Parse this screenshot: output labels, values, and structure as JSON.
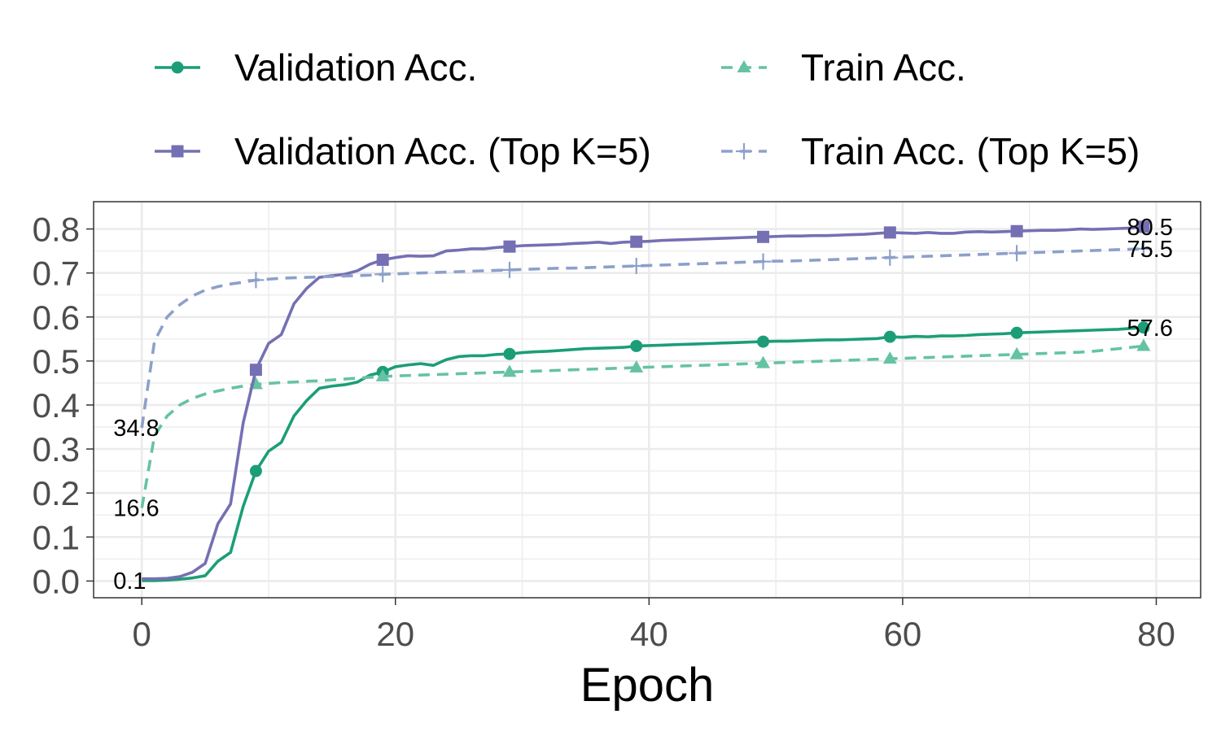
{
  "chart_data": {
    "type": "line",
    "xlabel": "Epoch",
    "ylabel": "",
    "xlim": [
      -3.8,
      83.5
    ],
    "ylim": [
      -0.038,
      0.862
    ],
    "xticks": [
      0,
      20,
      40,
      60,
      80
    ],
    "xtick_labels": [
      "0",
      "20",
      "40",
      "60",
      "80"
    ],
    "yticks": [
      0.0,
      0.1,
      0.2,
      0.3,
      0.4,
      0.5,
      0.6,
      0.7,
      0.8
    ],
    "ytick_labels": [
      "0.0",
      "0.1",
      "0.2",
      "0.3",
      "0.4",
      "0.5",
      "0.6",
      "0.7",
      "0.8"
    ],
    "grid": true,
    "legend_position": "top",
    "series": [
      {
        "name": "Validation Acc.",
        "color": "#1b9e77",
        "linestyle": "solid",
        "marker": "circle",
        "marker_every": 10,
        "marker_start": 9,
        "values": [
          0.001,
          0.001,
          0.002,
          0.004,
          0.007,
          0.012,
          0.045,
          0.065,
          0.17,
          0.25,
          0.295,
          0.315,
          0.375,
          0.41,
          0.438,
          0.443,
          0.446,
          0.452,
          0.468,
          0.475,
          0.487,
          0.491,
          0.494,
          0.49,
          0.503,
          0.51,
          0.512,
          0.512,
          0.515,
          0.516,
          0.519,
          0.521,
          0.522,
          0.524,
          0.526,
          0.528,
          0.529,
          0.53,
          0.531,
          0.534,
          0.535,
          0.536,
          0.537,
          0.538,
          0.539,
          0.54,
          0.541,
          0.542,
          0.543,
          0.544,
          0.545,
          0.545,
          0.546,
          0.547,
          0.548,
          0.548,
          0.549,
          0.55,
          0.551,
          0.555,
          0.554,
          0.556,
          0.555,
          0.557,
          0.557,
          0.558,
          0.56,
          0.561,
          0.562,
          0.564,
          0.565,
          0.566,
          0.567,
          0.568,
          0.569,
          0.57,
          0.571,
          0.572,
          0.574,
          0.576
        ]
      },
      {
        "name": "Train Acc.",
        "color": "#66c2a5",
        "linestyle": "dashed",
        "marker": "triangle",
        "marker_every": 10,
        "marker_start": 9,
        "values": [
          0.166,
          0.33,
          0.375,
          0.4,
          0.415,
          0.425,
          0.432,
          0.438,
          0.443,
          0.447,
          0.449,
          0.451,
          0.452,
          0.454,
          0.455,
          0.457,
          0.459,
          0.461,
          0.463,
          0.465,
          0.466,
          0.467,
          0.468,
          0.469,
          0.47,
          0.471,
          0.472,
          0.473,
          0.474,
          0.475,
          0.476,
          0.477,
          0.478,
          0.479,
          0.48,
          0.481,
          0.482,
          0.483,
          0.484,
          0.485,
          0.486,
          0.487,
          0.488,
          0.489,
          0.49,
          0.491,
          0.492,
          0.493,
          0.494,
          0.495,
          0.496,
          0.497,
          0.498,
          0.499,
          0.5,
          0.501,
          0.502,
          0.503,
          0.504,
          0.505,
          0.506,
          0.507,
          0.508,
          0.509,
          0.51,
          0.511,
          0.512,
          0.513,
          0.514,
          0.515,
          0.516,
          0.517,
          0.518,
          0.519,
          0.52,
          0.522,
          0.525,
          0.528,
          0.531,
          0.534
        ]
      },
      {
        "name": "Validation Acc. (Top K=5)",
        "color": "#7570b3",
        "linestyle": "solid",
        "marker": "square",
        "marker_every": 10,
        "marker_start": 9,
        "values": [
          0.005,
          0.005,
          0.006,
          0.01,
          0.02,
          0.04,
          0.13,
          0.175,
          0.36,
          0.48,
          0.54,
          0.56,
          0.63,
          0.665,
          0.69,
          0.694,
          0.697,
          0.705,
          0.72,
          0.73,
          0.735,
          0.739,
          0.738,
          0.739,
          0.75,
          0.752,
          0.755,
          0.755,
          0.758,
          0.76,
          0.762,
          0.763,
          0.764,
          0.765,
          0.767,
          0.768,
          0.77,
          0.767,
          0.77,
          0.771,
          0.772,
          0.774,
          0.775,
          0.776,
          0.777,
          0.778,
          0.779,
          0.78,
          0.781,
          0.782,
          0.783,
          0.784,
          0.784,
          0.785,
          0.785,
          0.786,
          0.787,
          0.788,
          0.79,
          0.792,
          0.791,
          0.79,
          0.792,
          0.79,
          0.79,
          0.793,
          0.794,
          0.793,
          0.794,
          0.795,
          0.796,
          0.797,
          0.797,
          0.798,
          0.8,
          0.799,
          0.8,
          0.801,
          0.802,
          0.805
        ]
      },
      {
        "name": "Train Acc. (Top K=5)",
        "color": "#8da0cb",
        "linestyle": "dashed",
        "marker": "plus",
        "marker_every": 10,
        "marker_start": 9,
        "values": [
          0.348,
          0.545,
          0.6,
          0.628,
          0.648,
          0.661,
          0.669,
          0.675,
          0.679,
          0.684,
          0.686,
          0.688,
          0.689,
          0.69,
          0.691,
          0.692,
          0.693,
          0.694,
          0.695,
          0.697,
          0.698,
          0.699,
          0.7,
          0.701,
          0.702,
          0.703,
          0.704,
          0.705,
          0.706,
          0.707,
          0.708,
          0.709,
          0.71,
          0.711,
          0.711,
          0.712,
          0.713,
          0.714,
          0.715,
          0.716,
          0.717,
          0.718,
          0.719,
          0.72,
          0.721,
          0.722,
          0.723,
          0.724,
          0.725,
          0.726,
          0.727,
          0.727,
          0.728,
          0.729,
          0.73,
          0.731,
          0.732,
          0.733,
          0.734,
          0.735,
          0.736,
          0.737,
          0.738,
          0.739,
          0.74,
          0.741,
          0.742,
          0.743,
          0.744,
          0.745,
          0.746,
          0.747,
          0.748,
          0.749,
          0.75,
          0.751,
          0.752,
          0.753,
          0.754,
          0.755
        ]
      }
    ],
    "annotations": [
      {
        "text": "0.1",
        "x": 0,
        "y": 0.001,
        "side": "left"
      },
      {
        "text": "16.6",
        "x": 0,
        "y": 0.166,
        "side": "left"
      },
      {
        "text": "34.8",
        "x": 0,
        "y": 0.348,
        "side": "left"
      },
      {
        "text": "57.6",
        "x": 79,
        "y": 0.576,
        "side": "right"
      },
      {
        "text": "75.5",
        "x": 79,
        "y": 0.755,
        "side": "right"
      },
      {
        "text": "80.5",
        "x": 79,
        "y": 0.805,
        "side": "right"
      }
    ]
  }
}
